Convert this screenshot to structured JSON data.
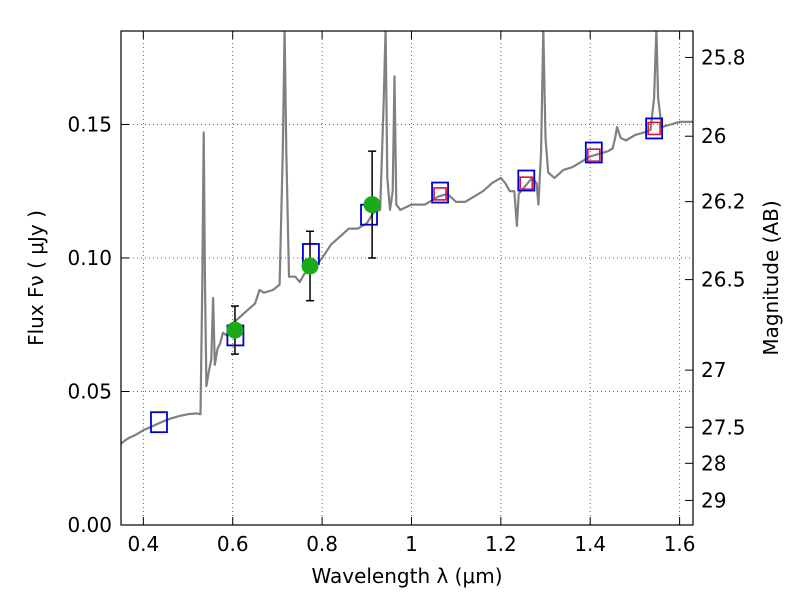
{
  "chart_data": {
    "type": "scatter",
    "xlabel": "Wavelength  λ (μm)",
    "ylabel": "Flux  Fν  ( μJy )",
    "ylabel_right": "Magnitude (AB)",
    "xlim": [
      0.35,
      1.63
    ],
    "ylim": [
      0.0,
      0.185
    ],
    "grid": true,
    "x_ticks": [
      0.4,
      0.6,
      0.8,
      1.0,
      1.2,
      1.4,
      1.6
    ],
    "x_tick_labels": [
      "0.4",
      "0.6",
      "0.8",
      "1",
      "1.2",
      "1.4",
      "1.6"
    ],
    "y_ticks": [
      0.0,
      0.05,
      0.1,
      0.15
    ],
    "y_tick_labels": [
      "0.00",
      "0.05",
      "0.10",
      "0.15"
    ],
    "right_ticks": [
      {
        "label": "25.8",
        "flux": 0.1751
      },
      {
        "label": "26",
        "flux": 0.1456
      },
      {
        "label": "26.2",
        "flux": 0.1211
      },
      {
        "label": "26.5",
        "flux": 0.0919
      },
      {
        "label": "27",
        "flux": 0.058
      },
      {
        "label": "27.5",
        "flux": 0.0366
      },
      {
        "label": "28",
        "flux": 0.0231
      },
      {
        "label": "29",
        "flux": 0.0092
      }
    ],
    "colors": {
      "spectrum": "#808080",
      "model_box": "#0000cc",
      "red_box": "#d4143c",
      "observed": "#1aaa1a",
      "errorbar": "#000000",
      "grid": "#666666"
    },
    "series": [
      {
        "values": [
          [
            0.35,
            0.0305
          ],
          [
            0.36,
            0.0318
          ],
          [
            0.37,
            0.0328
          ],
          [
            0.38,
            0.0335
          ],
          [
            0.39,
            0.0345
          ],
          [
            0.4,
            0.0355
          ],
          [
            0.42,
            0.037
          ],
          [
            0.44,
            0.0385
          ],
          [
            0.46,
            0.0398
          ],
          [
            0.48,
            0.0408
          ],
          [
            0.5,
            0.0415
          ],
          [
            0.52,
            0.0418
          ],
          [
            0.528,
            0.0415
          ],
          [
            0.532,
            0.09
          ],
          [
            0.535,
            0.147
          ],
          [
            0.538,
            0.09
          ],
          [
            0.541,
            0.052
          ],
          [
            0.546,
            0.057
          ],
          [
            0.552,
            0.062
          ],
          [
            0.556,
            0.085
          ],
          [
            0.56,
            0.06
          ],
          [
            0.566,
            0.066
          ],
          [
            0.572,
            0.068
          ],
          [
            0.578,
            0.072
          ],
          [
            0.586,
            0.071
          ],
          [
            0.595,
            0.075
          ],
          [
            0.61,
            0.077
          ],
          [
            0.63,
            0.08
          ],
          [
            0.65,
            0.083
          ],
          [
            0.66,
            0.088
          ],
          [
            0.67,
            0.087
          ],
          [
            0.69,
            0.088
          ],
          [
            0.705,
            0.09
          ],
          [
            0.712,
            0.14
          ],
          [
            0.716,
            0.186
          ],
          [
            0.72,
            0.14
          ],
          [
            0.726,
            0.093
          ],
          [
            0.74,
            0.093
          ],
          [
            0.75,
            0.091
          ],
          [
            0.76,
            0.094
          ],
          [
            0.78,
            0.096
          ],
          [
            0.8,
            0.1
          ],
          [
            0.82,
            0.105
          ],
          [
            0.84,
            0.108
          ],
          [
            0.86,
            0.111
          ],
          [
            0.88,
            0.111
          ],
          [
            0.9,
            0.113
          ],
          [
            0.915,
            0.117
          ],
          [
            0.93,
            0.118
          ],
          [
            0.938,
            0.16
          ],
          [
            0.942,
            0.186
          ],
          [
            0.946,
            0.13
          ],
          [
            0.952,
            0.118
          ],
          [
            0.958,
            0.125
          ],
          [
            0.962,
            0.168
          ],
          [
            0.966,
            0.12
          ],
          [
            0.975,
            0.118
          ],
          [
            1.0,
            0.12
          ],
          [
            1.03,
            0.12
          ],
          [
            1.06,
            0.123
          ],
          [
            1.08,
            0.124
          ],
          [
            1.1,
            0.121
          ],
          [
            1.12,
            0.121
          ],
          [
            1.14,
            0.123
          ],
          [
            1.16,
            0.125
          ],
          [
            1.18,
            0.128
          ],
          [
            1.2,
            0.13
          ],
          [
            1.21,
            0.128
          ],
          [
            1.22,
            0.125
          ],
          [
            1.23,
            0.125
          ],
          [
            1.236,
            0.112
          ],
          [
            1.24,
            0.124
          ],
          [
            1.25,
            0.126
          ],
          [
            1.26,
            0.128
          ],
          [
            1.27,
            0.13
          ],
          [
            1.28,
            0.128
          ],
          [
            1.284,
            0.12
          ],
          [
            1.29,
            0.14
          ],
          [
            1.295,
            0.186
          ],
          [
            1.3,
            0.145
          ],
          [
            1.306,
            0.132
          ],
          [
            1.32,
            0.13
          ],
          [
            1.34,
            0.133
          ],
          [
            1.36,
            0.134
          ],
          [
            1.38,
            0.136
          ],
          [
            1.4,
            0.138
          ],
          [
            1.42,
            0.139
          ],
          [
            1.44,
            0.14
          ],
          [
            1.45,
            0.141
          ],
          [
            1.456,
            0.145
          ],
          [
            1.46,
            0.149
          ],
          [
            1.468,
            0.145
          ],
          [
            1.48,
            0.144
          ],
          [
            1.5,
            0.146
          ],
          [
            1.52,
            0.147
          ],
          [
            1.535,
            0.148
          ],
          [
            1.543,
            0.16
          ],
          [
            1.548,
            0.186
          ],
          [
            1.552,
            0.16
          ],
          [
            1.56,
            0.149
          ],
          [
            1.58,
            0.15
          ],
          [
            1.6,
            0.151
          ],
          [
            1.63,
            0.151
          ]
        ]
      },
      {
        "x": [
          0.435,
          0.606,
          0.775,
          0.905,
          1.064,
          1.257,
          1.408,
          1.543
        ],
        "y": [
          0.0385,
          0.071,
          0.1015,
          0.1162,
          0.1245,
          0.129,
          0.1395,
          0.1485
        ]
      },
      {
        "x": [
          1.064,
          1.257,
          1.408,
          1.543
        ],
        "y": [
          0.124,
          0.128,
          0.1385,
          0.1485
        ]
      },
      {
        "x": [
          0.605,
          0.773,
          0.912
        ],
        "y": [
          0.073,
          0.097,
          0.12
        ],
        "yerr": [
          0.009,
          0.013,
          0.02
        ]
      }
    ]
  }
}
